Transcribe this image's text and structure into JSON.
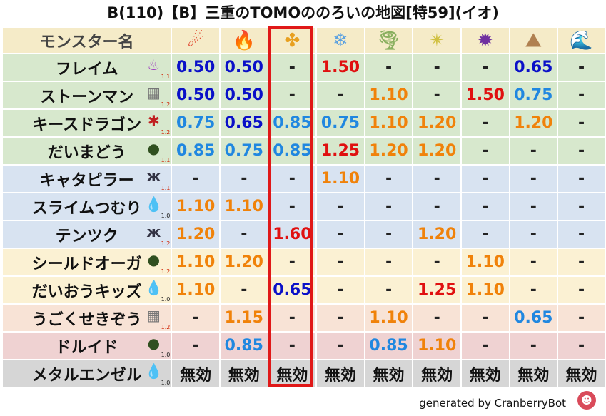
{
  "title": "B(110)【B】三重のTOMOののろいの地図[特59](イオ)",
  "header_name": "モンスター名",
  "elements": [
    {
      "icon": "fire-ball-icon",
      "glyph": "☄",
      "color": "#e0402a"
    },
    {
      "icon": "flame-icon",
      "glyph": "🔥",
      "color": "#e85020"
    },
    {
      "icon": "explosion-icon",
      "glyph": "✤",
      "color": "#e8a020"
    },
    {
      "icon": "ice-crystal-icon",
      "glyph": "❄",
      "color": "#5aa0e0"
    },
    {
      "icon": "tornado-icon",
      "glyph": "🌪",
      "color": "#8ab060"
    },
    {
      "icon": "lightning-icon",
      "glyph": "✴",
      "color": "#d0c040"
    },
    {
      "icon": "dark-vortex-icon",
      "glyph": "✹",
      "color": "#7030a0"
    },
    {
      "icon": "earth-mountain-icon",
      "glyph": "⛰",
      "color": "#b08050"
    },
    {
      "icon": "water-wave-icon",
      "glyph": "🌊",
      "color": "#2080d0"
    }
  ],
  "rows": [
    {
      "name": "フレイム",
      "icon": "purple-flame-monster-icon",
      "glyph": "♨",
      "icon_color": "#a040c0",
      "lv": "1.1",
      "lv_red": true,
      "bg": "green",
      "vals": [
        [
          "0.50",
          "blue"
        ],
        [
          "0.50",
          "blue"
        ],
        [
          "-",
          "dash"
        ],
        [
          "1.50",
          "red"
        ],
        [
          "-",
          "dash"
        ],
        [
          "-",
          "dash"
        ],
        [
          "-",
          "dash"
        ],
        [
          "0.65",
          "blue"
        ],
        [
          "-",
          "dash"
        ]
      ]
    },
    {
      "name": "ストーンマン",
      "icon": "brick-wall-icon",
      "glyph": "▦",
      "icon_color": "#777",
      "lv": "1.2",
      "lv_red": true,
      "bg": "green",
      "vals": [
        [
          "0.50",
          "blue"
        ],
        [
          "0.50",
          "blue"
        ],
        [
          "-",
          "dash"
        ],
        [
          "-",
          "dash"
        ],
        [
          "1.10",
          "orange"
        ],
        [
          "-",
          "dash"
        ],
        [
          "1.50",
          "red"
        ],
        [
          "0.75",
          "lblue"
        ],
        [
          "-",
          "dash"
        ]
      ]
    },
    {
      "name": "キースドラゴン",
      "icon": "red-dragon-icon",
      "glyph": "✱",
      "icon_color": "#c02020",
      "lv": "1.2",
      "lv_red": true,
      "bg": "green",
      "vals": [
        [
          "0.75",
          "lblue"
        ],
        [
          "0.65",
          "blue"
        ],
        [
          "0.85",
          "lblue"
        ],
        [
          "0.75",
          "lblue"
        ],
        [
          "1.10",
          "orange"
        ],
        [
          "1.20",
          "orange"
        ],
        [
          "-",
          "dash"
        ],
        [
          "1.20",
          "orange"
        ],
        [
          "-",
          "dash"
        ]
      ]
    },
    {
      "name": "だいまどう",
      "icon": "hooded-mage-icon",
      "glyph": "●",
      "icon_color": "#305020",
      "lv": "1.1",
      "lv_red": true,
      "bg": "green",
      "vals": [
        [
          "0.85",
          "lblue"
        ],
        [
          "0.75",
          "lblue"
        ],
        [
          "0.85",
          "lblue"
        ],
        [
          "1.25",
          "red"
        ],
        [
          "1.20",
          "orange"
        ],
        [
          "1.20",
          "orange"
        ],
        [
          "-",
          "dash"
        ],
        [
          "-",
          "dash"
        ],
        [
          "-",
          "dash"
        ]
      ]
    },
    {
      "name": "キャタピラー",
      "icon": "bug-antenna-icon",
      "glyph": "ж",
      "icon_color": "#334",
      "lv": "1.1",
      "lv_red": true,
      "bg": "blue",
      "vals": [
        [
          "-",
          "dash"
        ],
        [
          "-",
          "dash"
        ],
        [
          "-",
          "dash"
        ],
        [
          "1.10",
          "orange"
        ],
        [
          "-",
          "dash"
        ],
        [
          "-",
          "dash"
        ],
        [
          "-",
          "dash"
        ],
        [
          "-",
          "dash"
        ],
        [
          "-",
          "dash"
        ]
      ]
    },
    {
      "name": "スライムつむり",
      "icon": "blue-slime-icon",
      "glyph": "💧",
      "icon_color": "#2070d0",
      "lv": "1.0",
      "lv_red": false,
      "bg": "blue",
      "vals": [
        [
          "1.10",
          "orange"
        ],
        [
          "1.10",
          "orange"
        ],
        [
          "-",
          "dash"
        ],
        [
          "-",
          "dash"
        ],
        [
          "-",
          "dash"
        ],
        [
          "-",
          "dash"
        ],
        [
          "-",
          "dash"
        ],
        [
          "-",
          "dash"
        ],
        [
          "-",
          "dash"
        ]
      ]
    },
    {
      "name": "テンツク",
      "icon": "bug-antenna-icon",
      "glyph": "ж",
      "icon_color": "#334",
      "lv": "1.2",
      "lv_red": true,
      "bg": "blue",
      "vals": [
        [
          "1.20",
          "orange"
        ],
        [
          "-",
          "dash"
        ],
        [
          "1.60",
          "red"
        ],
        [
          "-",
          "dash"
        ],
        [
          "-",
          "dash"
        ],
        [
          "1.20",
          "orange"
        ],
        [
          "-",
          "dash"
        ],
        [
          "-",
          "dash"
        ],
        [
          "-",
          "dash"
        ]
      ]
    },
    {
      "name": "シールドオーガ",
      "icon": "hooded-mage-icon",
      "glyph": "●",
      "icon_color": "#305020",
      "lv": "1.2",
      "lv_red": true,
      "bg": "yellow",
      "vals": [
        [
          "1.10",
          "orange"
        ],
        [
          "1.20",
          "orange"
        ],
        [
          "-",
          "dash"
        ],
        [
          "-",
          "dash"
        ],
        [
          "-",
          "dash"
        ],
        [
          "-",
          "dash"
        ],
        [
          "1.10",
          "orange"
        ],
        [
          "-",
          "dash"
        ],
        [
          "-",
          "dash"
        ]
      ]
    },
    {
      "name": "だいおうキッズ",
      "icon": "water-drop-icon",
      "glyph": "💧",
      "icon_color": "#2080d0",
      "lv": "1.0",
      "lv_red": false,
      "bg": "yellow",
      "vals": [
        [
          "1.10",
          "orange"
        ],
        [
          "-",
          "dash"
        ],
        [
          "0.65",
          "blue"
        ],
        [
          "-",
          "dash"
        ],
        [
          "-",
          "dash"
        ],
        [
          "1.25",
          "red"
        ],
        [
          "1.10",
          "orange"
        ],
        [
          "-",
          "dash"
        ],
        [
          "-",
          "dash"
        ]
      ]
    },
    {
      "name": "うごくせきぞう",
      "icon": "brick-wall-icon",
      "glyph": "▦",
      "icon_color": "#777",
      "lv": "1.2",
      "lv_red": true,
      "bg": "peach",
      "vals": [
        [
          "-",
          "dash"
        ],
        [
          "1.15",
          "orange"
        ],
        [
          "-",
          "dash"
        ],
        [
          "-",
          "dash"
        ],
        [
          "1.10",
          "orange"
        ],
        [
          "-",
          "dash"
        ],
        [
          "-",
          "dash"
        ],
        [
          "0.65",
          "lblue"
        ],
        [
          "-",
          "dash"
        ]
      ]
    },
    {
      "name": "ドルイド",
      "icon": "hooded-mage-icon",
      "glyph": "●",
      "icon_color": "#305020",
      "lv": "1.0",
      "lv_red": false,
      "bg": "pink",
      "vals": [
        [
          "-",
          "dash"
        ],
        [
          "0.85",
          "lblue"
        ],
        [
          "-",
          "dash"
        ],
        [
          "-",
          "dash"
        ],
        [
          "0.85",
          "lblue"
        ],
        [
          "1.10",
          "orange"
        ],
        [
          "-",
          "dash"
        ],
        [
          "-",
          "dash"
        ],
        [
          "-",
          "dash"
        ]
      ]
    },
    {
      "name": "メタルエンゼル",
      "icon": "blue-slime-icon",
      "glyph": "💧",
      "icon_color": "#2070d0",
      "lv": "1.0",
      "lv_red": false,
      "bg": "gray",
      "vals": [
        [
          "無効",
          "black"
        ],
        [
          "無効",
          "black"
        ],
        [
          "無効",
          "black"
        ],
        [
          "無効",
          "black"
        ],
        [
          "無効",
          "black"
        ],
        [
          "無効",
          "black"
        ],
        [
          "無効",
          "black"
        ],
        [
          "無効",
          "black"
        ],
        [
          "無効",
          "black"
        ]
      ]
    }
  ],
  "footer": "generated by CranberryBot",
  "bot_avatar": "cranberry-bot-avatar-icon"
}
